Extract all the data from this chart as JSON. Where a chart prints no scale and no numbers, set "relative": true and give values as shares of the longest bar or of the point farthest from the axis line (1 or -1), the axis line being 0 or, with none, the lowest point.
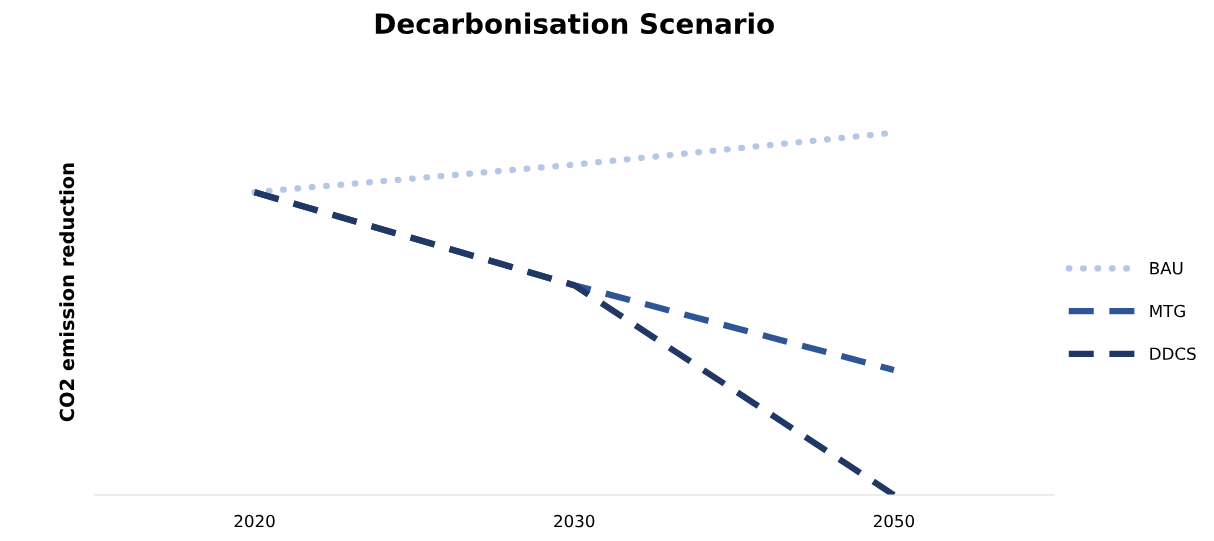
{
  "chart_data": {
    "type": "line",
    "title": "Decarbonisation Scenario",
    "ylabel": "CO2 emission reduction",
    "categories": [
      "2020",
      "2030",
      "2050"
    ],
    "relative": true,
    "legend": "right",
    "grid": false,
    "series": [
      {
        "name": "BAU",
        "color": "#b4c7e7",
        "line_style": "dotted",
        "values": [
          0.836,
          0.912,
          1
        ]
      },
      {
        "name": "MTG",
        "color": "#2f5597",
        "line_style": "dashed",
        "values": [
          0.836,
          0.579,
          0.345
        ]
      },
      {
        "name": "DDCS",
        "color": "#203864",
        "line_style": "dashed",
        "values": [
          0.836,
          0.579,
          0
        ]
      }
    ]
  }
}
